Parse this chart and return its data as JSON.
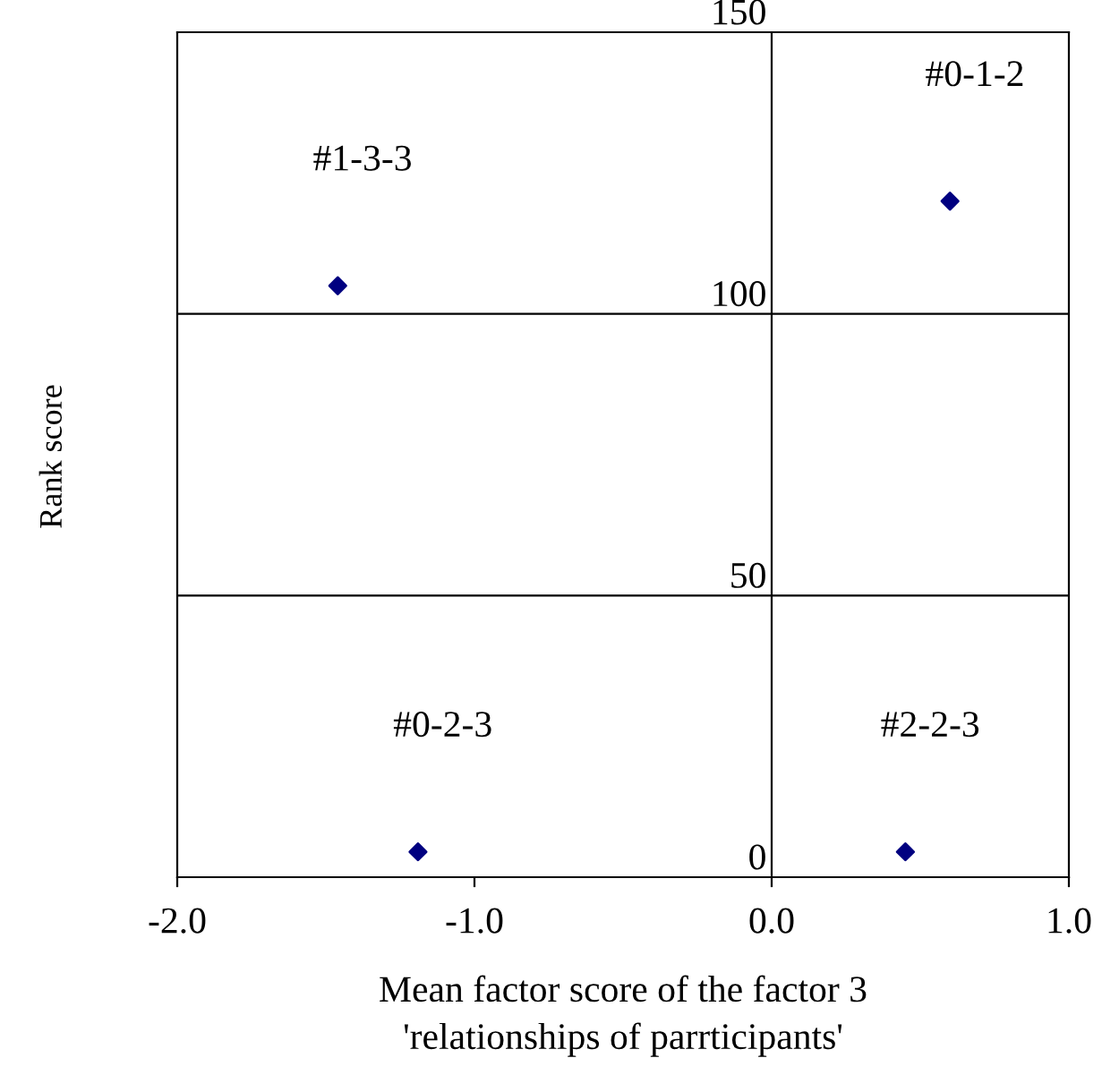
{
  "chart_data": {
    "type": "scatter",
    "xlabel": "Mean factor score of the factor 3\n'relationships of parrticipants'",
    "ylabel": "Rank score",
    "x": [
      -1.46,
      0.6,
      -1.19,
      0.45
    ],
    "series": [
      {
        "color": "#000080",
        "values": [
          105,
          120,
          4.5,
          4.5
        ]
      }
    ],
    "marker": "diamond",
    "xlim": [
      -2,
      1
    ],
    "ylim": [
      0,
      150
    ],
    "xticks": [
      {
        "value": -2,
        "label": "-2.0"
      },
      {
        "value": -1,
        "label": "-1.0"
      },
      {
        "value": 0,
        "label": "0.0"
      },
      {
        "value": 1,
        "label": "1.0"
      }
    ],
    "yticks": [
      0,
      50,
      100,
      150
    ],
    "grid": "y",
    "annotations": [
      "#1-3-3",
      "#0-1-2",
      "#0-2-3",
      "#2-2-3"
    ]
  }
}
